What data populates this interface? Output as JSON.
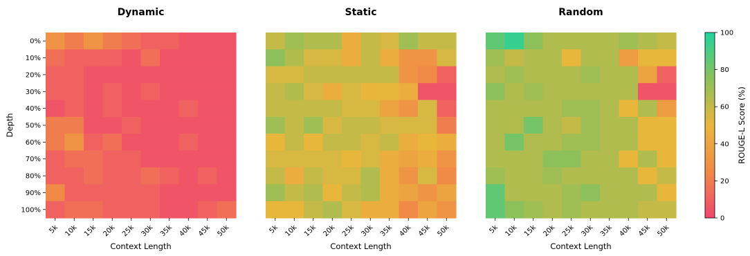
{
  "chart_data": [
    {
      "type": "heatmap",
      "title": "Dynamic",
      "xlabel": "Context Length",
      "ylabel": "Depth",
      "x": [
        "5k",
        "10k",
        "15k",
        "20k",
        "25k",
        "30k",
        "35k",
        "40k",
        "45k",
        "50k"
      ],
      "y": [
        "0%",
        "10%",
        "20%",
        "30%",
        "40%",
        "50%",
        "60%",
        "70%",
        "80%",
        "90%",
        "100%"
      ],
      "values": [
        [
          30,
          20,
          30,
          20,
          15,
          10,
          10,
          5,
          5,
          5
        ],
        [
          15,
          10,
          10,
          10,
          5,
          15,
          5,
          5,
          5,
          5
        ],
        [
          10,
          10,
          5,
          5,
          5,
          5,
          5,
          5,
          5,
          5
        ],
        [
          10,
          10,
          5,
          10,
          5,
          10,
          5,
          5,
          5,
          5
        ],
        [
          5,
          10,
          5,
          10,
          5,
          5,
          5,
          10,
          5,
          5
        ],
        [
          20,
          20,
          5,
          5,
          10,
          5,
          5,
          5,
          5,
          5
        ],
        [
          20,
          30,
          10,
          15,
          5,
          5,
          5,
          10,
          5,
          5
        ],
        [
          10,
          15,
          15,
          10,
          10,
          5,
          5,
          5,
          5,
          5
        ],
        [
          10,
          10,
          15,
          10,
          10,
          15,
          10,
          5,
          10,
          5
        ],
        [
          25,
          10,
          10,
          10,
          10,
          10,
          5,
          5,
          5,
          5
        ],
        [
          10,
          15,
          15,
          10,
          10,
          10,
          5,
          5,
          10,
          15
        ]
      ]
    },
    {
      "type": "heatmap",
      "title": "Static",
      "xlabel": "Context Length",
      "ylabel": "",
      "x": [
        "5k",
        "10k",
        "15k",
        "20k",
        "25k",
        "30k",
        "35k",
        "40k",
        "45k",
        "50k"
      ],
      "y": [
        "0%",
        "10%",
        "20%",
        "30%",
        "40%",
        "50%",
        "60%",
        "70%",
        "80%",
        "90%",
        "100%"
      ],
      "values": [
        [
          60,
          70,
          65,
          65,
          45,
          60,
          55,
          70,
          60,
          60
        ],
        [
          75,
          65,
          55,
          55,
          45,
          60,
          45,
          30,
          30,
          55
        ],
        [
          55,
          55,
          60,
          60,
          60,
          60,
          60,
          30,
          25,
          10
        ],
        [
          60,
          65,
          55,
          45,
          55,
          50,
          50,
          45,
          5,
          5
        ],
        [
          60,
          60,
          60,
          60,
          55,
          55,
          40,
          30,
          55,
          10
        ],
        [
          70,
          60,
          70,
          55,
          60,
          60,
          55,
          55,
          55,
          20
        ],
        [
          50,
          60,
          50,
          60,
          60,
          55,
          60,
          45,
          50,
          45
        ],
        [
          55,
          55,
          55,
          55,
          50,
          55,
          45,
          40,
          45,
          30
        ],
        [
          60,
          45,
          60,
          55,
          55,
          65,
          45,
          30,
          55,
          25
        ],
        [
          70,
          60,
          65,
          50,
          60,
          65,
          45,
          40,
          30,
          40
        ],
        [
          50,
          50,
          60,
          65,
          55,
          45,
          45,
          25,
          40,
          30
        ]
      ]
    },
    {
      "type": "heatmap",
      "title": "Random",
      "xlabel": "Context Length",
      "ylabel": "",
      "x": [
        "5k",
        "10k",
        "15k",
        "20k",
        "25k",
        "30k",
        "35k",
        "40k",
        "45k",
        "50k"
      ],
      "y": [
        "0%",
        "10%",
        "20%",
        "30%",
        "40%",
        "50%",
        "60%",
        "70%",
        "80%",
        "90%",
        "100%"
      ],
      "values": [
        [
          85,
          95,
          75,
          65,
          65,
          65,
          65,
          70,
          65,
          60
        ],
        [
          70,
          60,
          65,
          65,
          50,
          65,
          65,
          35,
          50,
          50
        ],
        [
          65,
          70,
          65,
          65,
          65,
          70,
          65,
          65,
          40,
          10
        ],
        [
          75,
          65,
          70,
          65,
          65,
          65,
          65,
          65,
          5,
          5
        ],
        [
          65,
          65,
          65,
          65,
          70,
          70,
          65,
          50,
          65,
          35
        ],
        [
          65,
          65,
          80,
          65,
          60,
          70,
          65,
          65,
          50,
          50
        ],
        [
          65,
          80,
          65,
          65,
          70,
          70,
          65,
          65,
          50,
          50
        ],
        [
          65,
          65,
          65,
          75,
          75,
          65,
          65,
          50,
          65,
          50
        ],
        [
          70,
          65,
          65,
          70,
          65,
          65,
          65,
          65,
          50,
          60
        ],
        [
          85,
          65,
          65,
          65,
          70,
          75,
          65,
          65,
          65,
          50
        ],
        [
          85,
          75,
          70,
          65,
          70,
          65,
          65,
          65,
          60,
          60
        ]
      ]
    }
  ],
  "colorbar": {
    "label": "ROUGE-L Score (%)",
    "min": 0,
    "max": 100,
    "ticks": [
      "0",
      "20",
      "40",
      "60",
      "80",
      "100"
    ],
    "colors": [
      "#f0476f",
      "#f08a46",
      "#e9b63c",
      "#8cc05a",
      "#1fd49e"
    ]
  }
}
